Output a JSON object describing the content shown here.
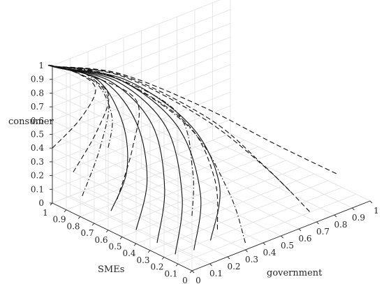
{
  "chart_data": {
    "type": "line3d",
    "title": "",
    "xlabel": "government",
    "ylabel": "SMEs",
    "zlabel": "consumer",
    "xlim": [
      0,
      1
    ],
    "ylim": [
      0,
      1
    ],
    "zlim": [
      0,
      1
    ],
    "grid": true,
    "x_ticks": [
      "0",
      "0.1",
      "0.2",
      "0.3",
      "0.4",
      "0.5",
      "0.6",
      "0.7",
      "0.8",
      "0.9",
      "1"
    ],
    "y_ticks": [
      "0",
      "0.1",
      "0.2",
      "0.3",
      "0.4",
      "0.5",
      "0.6",
      "0.7",
      "0.8",
      "0.9",
      "1"
    ],
    "z_ticks": [
      "0",
      "0.1",
      "0.2",
      "0.3",
      "0.4",
      "0.5",
      "0.6",
      "0.7",
      "0.8",
      "0.9",
      "1"
    ],
    "series": [
      {
        "style": "solid",
        "points": [
          [
            0.0,
            0.58,
            0.15
          ],
          [
            0.12,
            0.62,
            0.36
          ],
          [
            0.2,
            0.75,
            0.6
          ],
          [
            0.18,
            0.9,
            0.85
          ],
          [
            0.02,
            0.99,
            0.98
          ],
          [
            0,
            1,
            1
          ]
        ]
      },
      {
        "style": "solid",
        "points": [
          [
            0.0,
            0.4,
            0.1
          ],
          [
            0.14,
            0.5,
            0.34
          ],
          [
            0.24,
            0.7,
            0.6
          ],
          [
            0.2,
            0.88,
            0.84
          ],
          [
            0.02,
            0.99,
            0.98
          ],
          [
            0,
            1,
            1
          ]
        ]
      },
      {
        "style": "solid",
        "points": [
          [
            0.0,
            0.25,
            0.08
          ],
          [
            0.16,
            0.4,
            0.32
          ],
          [
            0.28,
            0.64,
            0.6
          ],
          [
            0.22,
            0.86,
            0.84
          ],
          [
            0.02,
            0.99,
            0.98
          ],
          [
            0,
            1,
            1
          ]
        ]
      },
      {
        "style": "solid",
        "points": [
          [
            0.0,
            0.12,
            0.06
          ],
          [
            0.18,
            0.3,
            0.3
          ],
          [
            0.31,
            0.58,
            0.6
          ],
          [
            0.24,
            0.84,
            0.84
          ],
          [
            0.02,
            0.99,
            0.98
          ],
          [
            0,
            1,
            1
          ]
        ]
      },
      {
        "style": "solid",
        "points": [
          [
            0.05,
            0.05,
            0.1
          ],
          [
            0.22,
            0.22,
            0.34
          ],
          [
            0.33,
            0.52,
            0.62
          ],
          [
            0.25,
            0.82,
            0.85
          ],
          [
            0.02,
            0.99,
            0.98
          ],
          [
            0,
            1,
            1
          ]
        ]
      },
      {
        "style": "solid",
        "points": [
          [
            0.12,
            0.02,
            0.15
          ],
          [
            0.28,
            0.16,
            0.4
          ],
          [
            0.35,
            0.45,
            0.65
          ],
          [
            0.26,
            0.8,
            0.86
          ],
          [
            0.02,
            0.99,
            0.98
          ],
          [
            0,
            1,
            1
          ]
        ]
      },
      {
        "style": "dashed",
        "points": [
          [
            0.0,
            1.0,
            0.4
          ],
          [
            0.12,
            0.95,
            0.58
          ],
          [
            0.18,
            0.92,
            0.78
          ],
          [
            0.1,
            0.96,
            0.92
          ],
          [
            0.01,
            1.0,
            0.99
          ],
          [
            0,
            1,
            1
          ]
        ]
      },
      {
        "style": "dashed",
        "points": [
          [
            0.0,
            0.85,
            0.3
          ],
          [
            0.14,
            0.86,
            0.52
          ],
          [
            0.22,
            0.88,
            0.74
          ],
          [
            0.12,
            0.95,
            0.9
          ],
          [
            0.01,
            1.0,
            0.99
          ],
          [
            0,
            1,
            1
          ]
        ]
      },
      {
        "style": "dashed",
        "points": [
          [
            0.05,
            0.6,
            0.2
          ],
          [
            0.2,
            0.68,
            0.46
          ],
          [
            0.3,
            0.78,
            0.7
          ],
          [
            0.16,
            0.92,
            0.88
          ],
          [
            0.01,
            1.0,
            0.99
          ],
          [
            0,
            1,
            1
          ]
        ]
      },
      {
        "style": "dashed",
        "points": [
          [
            0.3,
            0.2,
            0.05
          ],
          [
            0.4,
            0.35,
            0.3
          ],
          [
            0.42,
            0.58,
            0.58
          ],
          [
            0.24,
            0.88,
            0.86
          ],
          [
            0.01,
            1.0,
            0.99
          ],
          [
            0,
            1,
            1
          ]
        ]
      },
      {
        "style": "dashed",
        "points": [
          [
            0.55,
            0.0,
            0.3
          ],
          [
            0.55,
            0.2,
            0.4
          ],
          [
            0.48,
            0.48,
            0.62
          ],
          [
            0.28,
            0.84,
            0.86
          ],
          [
            0.01,
            1.0,
            0.99
          ],
          [
            0,
            1,
            1
          ]
        ]
      },
      {
        "style": "dashed",
        "points": [
          [
            0.7,
            0.05,
            0.05
          ],
          [
            0.62,
            0.25,
            0.3
          ],
          [
            0.5,
            0.55,
            0.58
          ],
          [
            0.28,
            0.86,
            0.85
          ],
          [
            0.01,
            1.0,
            0.99
          ],
          [
            0,
            1,
            1
          ]
        ]
      },
      {
        "style": "dashed",
        "points": [
          [
            0.85,
            0.05,
            0.25
          ],
          [
            0.7,
            0.3,
            0.42
          ],
          [
            0.52,
            0.6,
            0.64
          ],
          [
            0.28,
            0.88,
            0.86
          ],
          [
            0.01,
            1.0,
            0.99
          ],
          [
            0,
            1,
            1
          ]
        ]
      },
      {
        "style": "dashdot",
        "points": [
          [
            0.0,
            0.0,
            0.4
          ],
          [
            0.2,
            0.25,
            0.5
          ],
          [
            0.35,
            0.55,
            0.7
          ],
          [
            0.22,
            0.86,
            0.88
          ],
          [
            0.01,
            1.0,
            0.99
          ],
          [
            0,
            1,
            1
          ]
        ]
      },
      {
        "style": "dashdot",
        "points": [
          [
            0.3,
            0.0,
            0.05
          ],
          [
            0.35,
            0.18,
            0.3
          ],
          [
            0.38,
            0.5,
            0.6
          ],
          [
            0.24,
            0.84,
            0.86
          ],
          [
            0.01,
            1.0,
            0.99
          ],
          [
            0,
            1,
            1
          ]
        ]
      },
      {
        "style": "dashdot",
        "points": [
          [
            0.05,
            0.85,
            0.1
          ],
          [
            0.15,
            0.85,
            0.4
          ],
          [
            0.22,
            0.88,
            0.7
          ],
          [
            0.14,
            0.95,
            0.9
          ],
          [
            0.01,
            1.0,
            0.99
          ],
          [
            0,
            1,
            1
          ]
        ]
      },
      {
        "style": "dashdot",
        "points": [
          [
            0.0,
            0.6,
            0.6
          ],
          [
            0.1,
            0.7,
            0.72
          ],
          [
            0.14,
            0.85,
            0.86
          ],
          [
            0.06,
            0.96,
            0.96
          ],
          [
            0.01,
            1.0,
            0.99
          ],
          [
            0,
            1,
            1
          ]
        ]
      }
    ]
  }
}
